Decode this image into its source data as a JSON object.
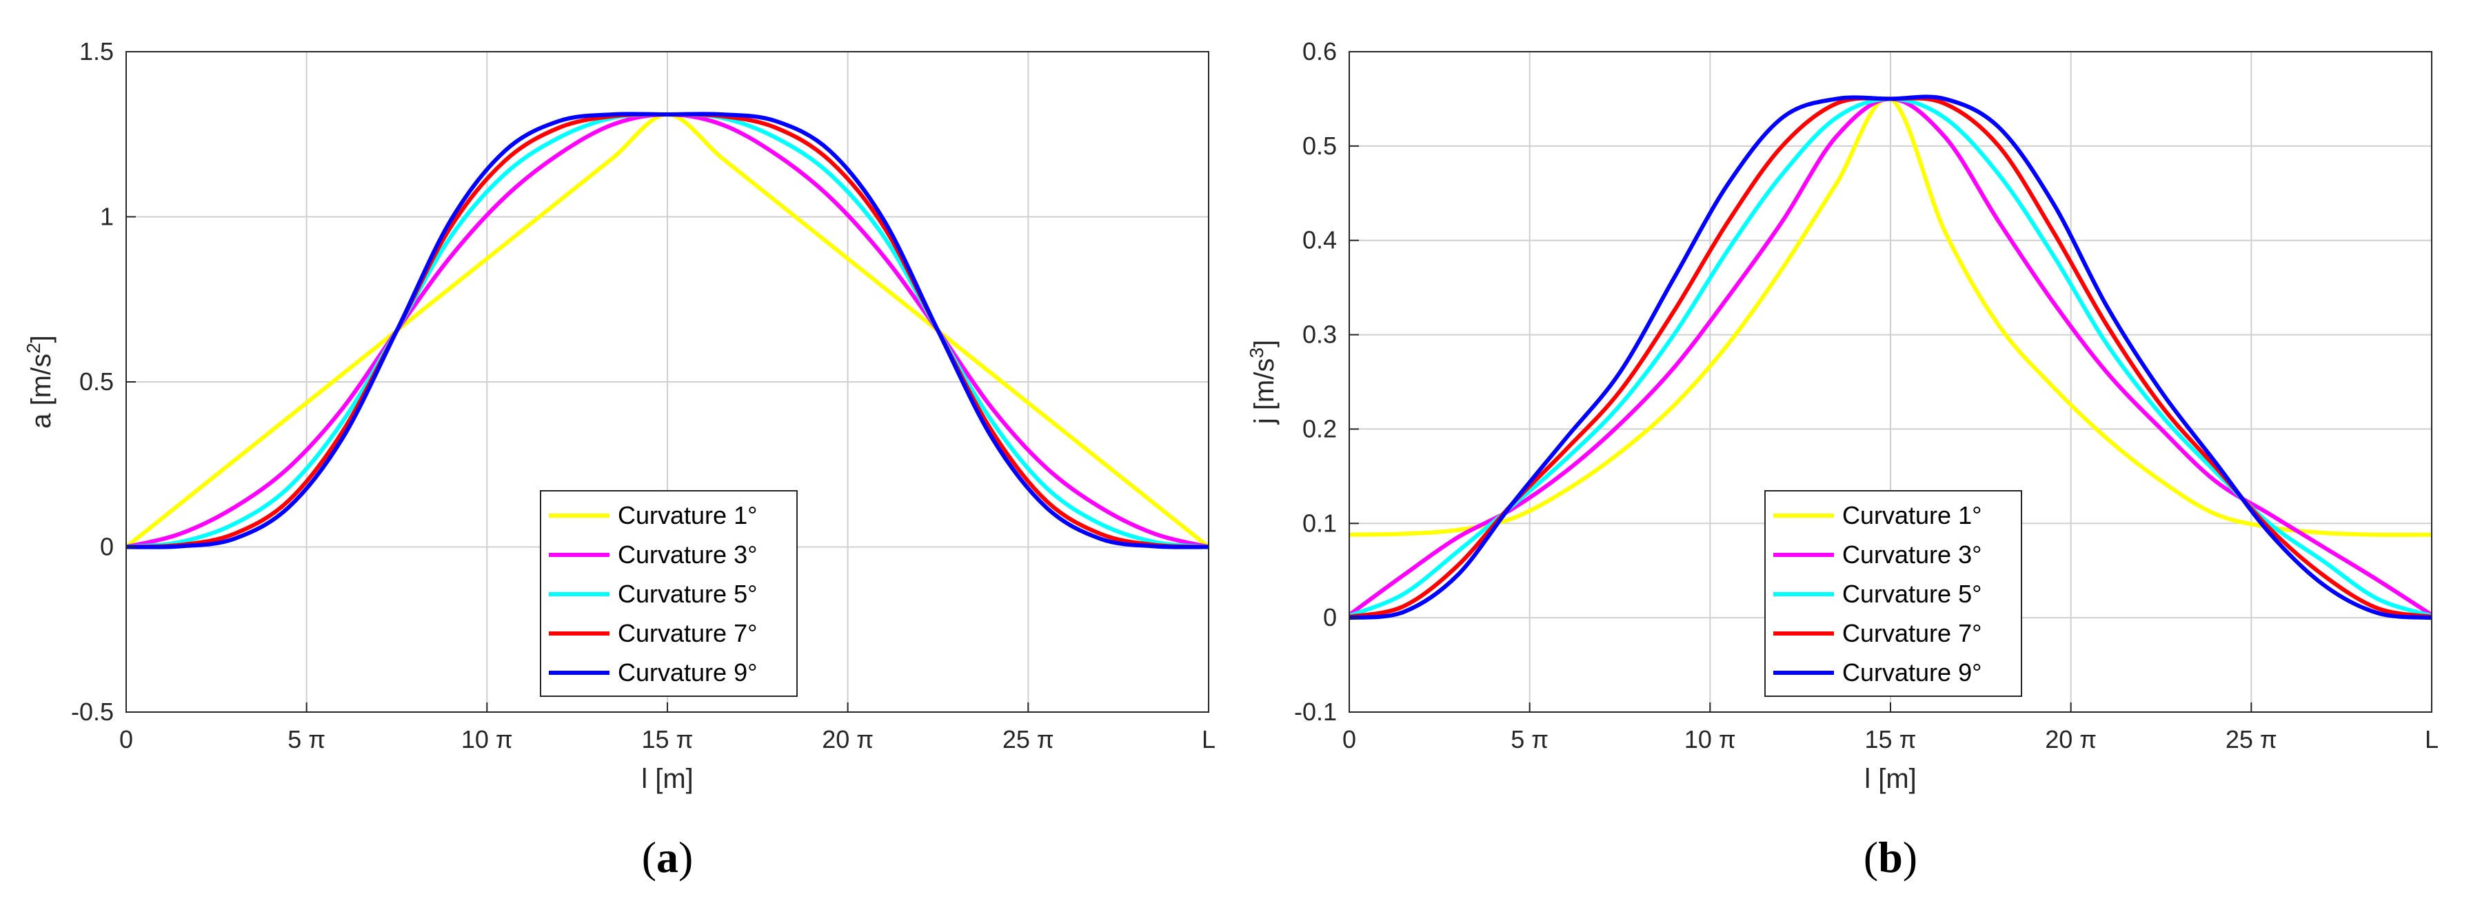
{
  "colors": {
    "Curvature 1°": "#ffff00",
    "Curvature 3°": "#ff00ff",
    "Curvature 5°": "#00ffff",
    "Curvature 7°": "#ff0000",
    "Curvature 9°": "#0000ff",
    "grid": "#d0d0d0",
    "axis": "#262626"
  },
  "chart_data": [
    {
      "type": "line",
      "panel_label": "a",
      "xlabel": "l [m]",
      "ylabel": "a [m/s",
      "ylabel_sup": "2",
      "ylabel_end": "]",
      "xlim": [
        0,
        94.25
      ],
      "ylim": [
        -0.5,
        1.5
      ],
      "x_ticks": [
        0,
        15.708,
        31.416,
        47.124,
        62.832,
        78.54,
        94.248
      ],
      "x_tick_labels": [
        "0",
        "5 π",
        "10 π",
        "15 π",
        "20 π",
        "25 π",
        "L"
      ],
      "y_ticks": [
        -0.5,
        0,
        0.5,
        1,
        1.5
      ],
      "y_tick_labels": [
        "-0.5",
        "0",
        "0.5",
        "1",
        "1.5"
      ],
      "grid": true,
      "legend_position": "bottom-center",
      "x": [
        0,
        4.71,
        9.42,
        14.14,
        18.85,
        23.56,
        28.27,
        32.99,
        37.7,
        42.41,
        47.12,
        51.84,
        56.55,
        61.26,
        65.97,
        70.69,
        75.4,
        80.11,
        84.82,
        89.54,
        94.25
      ],
      "series": [
        {
          "name": "Curvature 1°",
          "values": [
            0,
            0.131,
            0.262,
            0.393,
            0.524,
            0.655,
            0.786,
            0.917,
            1.048,
            1.179,
            1.31,
            1.179,
            1.048,
            0.917,
            0.786,
            0.655,
            0.524,
            0.393,
            0.262,
            0.131,
            0
          ]
        },
        {
          "name": "Curvature 3°",
          "values": [
            0,
            0.04,
            0.12,
            0.24,
            0.42,
            0.655,
            0.88,
            1.06,
            1.19,
            1.28,
            1.31,
            1.28,
            1.19,
            1.06,
            0.88,
            0.655,
            0.42,
            0.24,
            0.12,
            0.04,
            0
          ]
        },
        {
          "name": "Curvature 5°",
          "values": [
            0,
            0.015,
            0.07,
            0.18,
            0.38,
            0.655,
            0.94,
            1.13,
            1.24,
            1.3,
            1.31,
            1.3,
            1.24,
            1.13,
            0.94,
            0.655,
            0.38,
            0.18,
            0.07,
            0.015,
            0
          ]
        },
        {
          "name": "Curvature 7°",
          "values": [
            0,
            0.006,
            0.04,
            0.14,
            0.35,
            0.655,
            0.97,
            1.17,
            1.27,
            1.305,
            1.31,
            1.305,
            1.27,
            1.17,
            0.97,
            0.655,
            0.35,
            0.14,
            0.04,
            0.006,
            0
          ]
        },
        {
          "name": "Curvature 9°",
          "values": [
            0,
            0.002,
            0.025,
            0.12,
            0.33,
            0.655,
            0.99,
            1.2,
            1.29,
            1.31,
            1.31,
            1.31,
            1.29,
            1.2,
            0.99,
            0.655,
            0.33,
            0.12,
            0.025,
            0.002,
            0
          ]
        }
      ]
    },
    {
      "type": "line",
      "panel_label": "b",
      "xlabel": "l [m]",
      "ylabel": "j [m/s",
      "ylabel_sup": "3",
      "ylabel_end": "]",
      "xlim": [
        0,
        94.25
      ],
      "ylim": [
        -0.1,
        0.6
      ],
      "x_ticks": [
        0,
        15.708,
        31.416,
        47.124,
        62.832,
        78.54,
        94.248
      ],
      "x_tick_labels": [
        "0",
        "5 π",
        "10 π",
        "15 π",
        "20 π",
        "25 π",
        "L"
      ],
      "y_ticks": [
        -0.1,
        0,
        0.1,
        0.2,
        0.3,
        0.4,
        0.5,
        0.6
      ],
      "y_tick_labels": [
        "-0.1",
        "0",
        "0.1",
        "0.2",
        "0.3",
        "0.4",
        "0.5",
        "0.6"
      ],
      "grid": true,
      "legend_position": "bottom-center",
      "x": [
        0,
        4.71,
        9.42,
        14.14,
        18.85,
        23.56,
        28.27,
        32.99,
        37.7,
        42.41,
        47.12,
        51.84,
        56.55,
        61.26,
        65.97,
        70.69,
        75.4,
        80.11,
        84.82,
        89.54,
        94.25
      ],
      "series": [
        {
          "name": "Curvature 1°",
          "values": [
            0.088,
            0.089,
            0.093,
            0.105,
            0.135,
            0.175,
            0.225,
            0.29,
            0.37,
            0.46,
            0.55,
            0.41,
            0.31,
            0.245,
            0.19,
            0.145,
            0.11,
            0.096,
            0.09,
            0.088,
            0.088
          ]
        },
        {
          "name": "Curvature 3°",
          "values": [
            0.003,
            0.045,
            0.085,
            0.115,
            0.155,
            0.205,
            0.265,
            0.34,
            0.42,
            0.51,
            0.55,
            0.51,
            0.42,
            0.335,
            0.26,
            0.2,
            0.145,
            0.11,
            0.075,
            0.04,
            0.003
          ]
        },
        {
          "name": "Curvature 5°",
          "values": [
            0.002,
            0.025,
            0.07,
            0.118,
            0.168,
            0.225,
            0.3,
            0.39,
            0.47,
            0.53,
            0.55,
            0.53,
            0.47,
            0.385,
            0.29,
            0.215,
            0.155,
            0.1,
            0.06,
            0.02,
            0.002
          ]
        },
        {
          "name": "Curvature 7°",
          "values": [
            0.001,
            0.012,
            0.055,
            0.12,
            0.178,
            0.24,
            0.325,
            0.42,
            0.5,
            0.545,
            0.55,
            0.545,
            0.5,
            0.41,
            0.31,
            0.225,
            0.16,
            0.095,
            0.045,
            0.01,
            0.001
          ]
        },
        {
          "name": "Curvature 9°",
          "values": [
            0,
            0.006,
            0.045,
            0.12,
            0.19,
            0.26,
            0.36,
            0.46,
            0.53,
            0.55,
            0.55,
            0.55,
            0.52,
            0.44,
            0.33,
            0.24,
            0.165,
            0.09,
            0.035,
            0.005,
            0
          ]
        }
      ]
    }
  ]
}
